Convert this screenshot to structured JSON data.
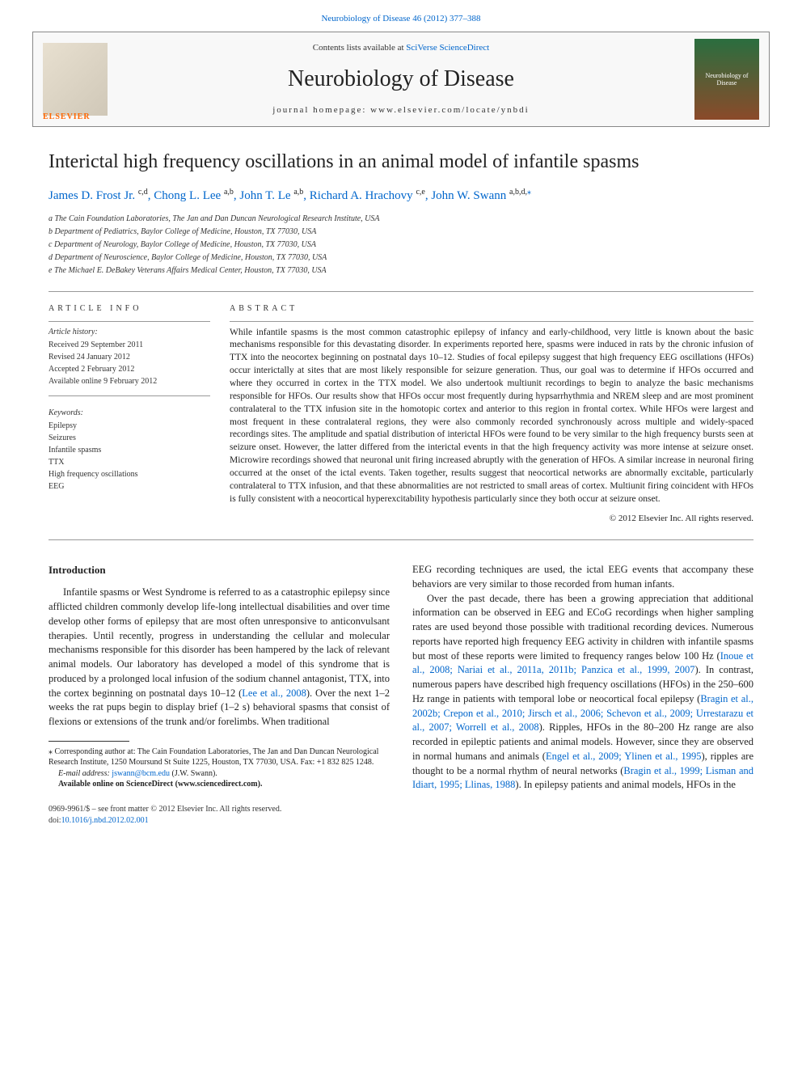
{
  "header": {
    "citation_link": "Neurobiology of Disease 46 (2012) 377–388",
    "contents_text": "Contents lists available at ",
    "contents_link": "SciVerse ScienceDirect",
    "journal_title": "Neurobiology of Disease",
    "homepage_label": "journal homepage: ",
    "homepage_url": "www.elsevier.com/locate/ynbdi",
    "elsevier": "ELSEVIER",
    "cover_text": "Neurobiology of Disease"
  },
  "article": {
    "title": "Interictal high frequency oscillations in an animal model of infantile spasms"
  },
  "authors": {
    "a1_name": "James D. Frost Jr. ",
    "a1_aff": "c,d",
    "a2_name": ", Chong L. Lee ",
    "a2_aff": "a,b",
    "a3_name": ", John T. Le ",
    "a3_aff": "a,b",
    "a4_name": ", Richard A. Hrachovy ",
    "a4_aff": "c,e",
    "a5_name": ", John W. Swann ",
    "a5_aff": "a,b,d,",
    "corr": "⁎"
  },
  "affiliations": {
    "a": "a The Cain Foundation Laboratories, The Jan and Dan Duncan Neurological Research Institute, USA",
    "b": "b Department of Pediatrics, Baylor College of Medicine, Houston, TX 77030, USA",
    "c": "c Department of Neurology, Baylor College of Medicine, Houston, TX 77030, USA",
    "d": "d Department of Neuroscience, Baylor College of Medicine, Houston, TX 77030, USA",
    "e": "e The Michael E. DeBakey Veterans Affairs Medical Center, Houston, TX 77030, USA"
  },
  "info": {
    "section_header": "article info",
    "history_label": "Article history:",
    "received": "Received 29 September 2011",
    "revised": "Revised 24 January 2012",
    "accepted": "Accepted 2 February 2012",
    "online": "Available online 9 February 2012",
    "keywords_label": "Keywords:",
    "kw1": "Epilepsy",
    "kw2": "Seizures",
    "kw3": "Infantile spasms",
    "kw4": "TTX",
    "kw5": "High frequency oscillations",
    "kw6": "EEG"
  },
  "abstract": {
    "header": "abstract",
    "text": "While infantile spasms is the most common catastrophic epilepsy of infancy and early-childhood, very little is known about the basic mechanisms responsible for this devastating disorder. In experiments reported here, spasms were induced in rats by the chronic infusion of TTX into the neocortex beginning on postnatal days 10–12. Studies of focal epilepsy suggest that high frequency EEG oscillations (HFOs) occur interictally at sites that are most likely responsible for seizure generation. Thus, our goal was to determine if HFOs occurred and where they occurred in cortex in the TTX model. We also undertook multiunit recordings to begin to analyze the basic mechanisms responsible for HFOs. Our results show that HFOs occur most frequently during hypsarrhythmia and NREM sleep and are most prominent contralateral to the TTX infusion site in the homotopic cortex and anterior to this region in frontal cortex. While HFOs were largest and most frequent in these contralateral regions, they were also commonly recorded synchronously across multiple and widely-spaced recordings sites. The amplitude and spatial distribution of interictal HFOs were found to be very similar to the high frequency bursts seen at seizure onset. However, the latter differed from the interictal events in that the high frequency activity was more intense at seizure onset. Microwire recordings showed that neuronal unit firing increased abruptly with the generation of HFOs. A similar increase in neuronal firing occurred at the onset of the ictal events. Taken together, results suggest that neocortical networks are abnormally excitable, particularly contralateral to TTX infusion, and that these abnormalities are not restricted to small areas of cortex. Multiunit firing coincident with HFOs is fully consistent with a neocortical hyperexcitability hypothesis particularly since they both occur at seizure onset.",
    "copyright": "© 2012 Elsevier Inc. All rights reserved."
  },
  "body": {
    "intro_heading": "Introduction",
    "intro_p1a": "Infantile spasms or West Syndrome is referred to as a catastrophic epilepsy since afflicted children commonly develop life-long intellectual disabilities and over time develop other forms of epilepsy that are most often unresponsive to anticonvulsant therapies. Until recently, progress in understanding the cellular and molecular mechanisms responsible for this disorder has been hampered by the lack of relevant animal models. Our laboratory has developed a model of this syndrome that is produced by a prolonged local infusion of the sodium channel antagonist, TTX, into the cortex beginning on postnatal days 10–12 (",
    "intro_ref1": "Lee et al., 2008",
    "intro_p1b": "). Over the next 1–2 weeks the rat pups begin to display brief (1–2 s) behavioral spasms that consist of flexions or extensions of the trunk and/or forelimbs. When traditional",
    "col2_p0": "EEG recording techniques are used, the ictal EEG events that accompany these behaviors are very similar to those recorded from human infants.",
    "col2_p1a": "Over the past decade, there has been a growing appreciation that additional information can be observed in EEG and ECoG recordings when higher sampling rates are used beyond those possible with traditional recording devices. Numerous reports have reported high frequency EEG activity in children with infantile spasms but most of these reports were limited to frequency ranges below 100 Hz (",
    "col2_ref1": "Inoue et al., 2008; Nariai et al., 2011a, 2011b; Panzica et al., 1999, 2007",
    "col2_p1b": "). In contrast, numerous papers have described high frequency oscillations (HFOs) in the 250–600 Hz range in patients with temporal lobe or neocortical focal epilepsy (",
    "col2_ref2": "Bragin et al., 2002b; Crepon et al., 2010; Jirsch et al., 2006; Schevon et al., 2009; Urrestarazu et al., 2007; Worrell et al., 2008",
    "col2_p1c": "). Ripples, HFOs in the 80–200 Hz range are also recorded in epileptic patients and animal models. However, since they are observed in normal humans and animals (",
    "col2_ref3": "Engel et al., 2009; Ylinen et al., 1995",
    "col2_p1d": "), ripples are thought to be a normal rhythm of neural networks (",
    "col2_ref4": "Bragin et al., 1999; Lisman and Idiart, 1995; Llinas, 1988",
    "col2_p1e": "). In epilepsy patients and animal models, HFOs in the"
  },
  "footnote": {
    "corr_label": "⁎ Corresponding author at: The Cain Foundation Laboratories, The Jan and Dan Duncan Neurological Research Institute, 1250 Moursund St Suite 1225, Houston, TX 77030, USA. Fax: +1 832 825 1248.",
    "email_label": "E-mail address: ",
    "email": "jswann@bcm.edu",
    "email_suffix": " (J.W. Swann).",
    "avail": "Available online on ScienceDirect (www.sciencedirect.com)."
  },
  "footer": {
    "issn_line": "0969-9961/$ – see front matter © 2012 Elsevier Inc. All rights reserved.",
    "doi_label": "doi:",
    "doi": "10.1016/j.nbd.2012.02.001"
  },
  "colors": {
    "link": "#0066cc",
    "text": "#1a1a1a",
    "border": "#888888",
    "elsevier_orange": "#ff6600"
  }
}
